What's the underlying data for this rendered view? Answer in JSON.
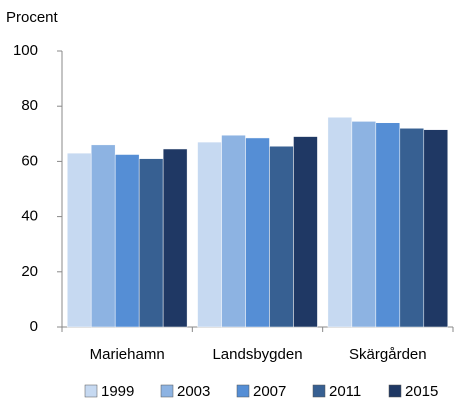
{
  "chart_data": {
    "type": "bar",
    "y_label": "Procent",
    "categories": [
      "Mariehamn",
      "Landsbygden",
      "Skärgården"
    ],
    "series": [
      {
        "name": "1999",
        "color": "#c6d9f1",
        "values": [
          63,
          67,
          76
        ]
      },
      {
        "name": "2003",
        "color": "#8db3e2",
        "values": [
          66,
          69.5,
          74.5
        ]
      },
      {
        "name": "2007",
        "color": "#558ed5",
        "values": [
          62.5,
          68.5,
          74
        ]
      },
      {
        "name": "2011",
        "color": "#376092",
        "values": [
          61,
          65.5,
          72
        ]
      },
      {
        "name": "2015",
        "color": "#1f3864",
        "values": [
          64.5,
          69,
          71.5
        ]
      }
    ],
    "ylim": [
      0,
      100
    ],
    "yticks": [
      0,
      20,
      40,
      60,
      80,
      100
    ],
    "grid": false,
    "legend": "bottom"
  }
}
